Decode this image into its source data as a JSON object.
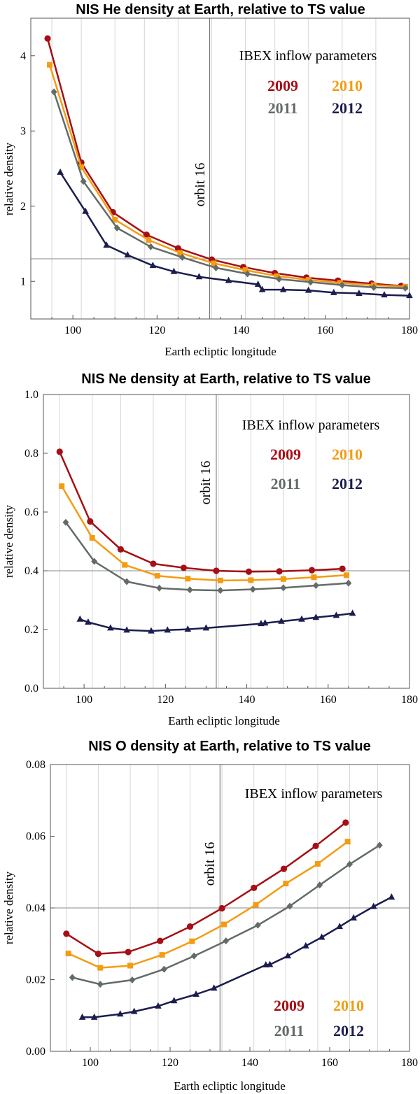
{
  "colors": {
    "2009": "#a50f15",
    "2010": "#f39c12",
    "2011": "#636b68",
    "2012": "#1b1d4e"
  },
  "chart_data": [
    {
      "type": "line",
      "title": "NIS He density at Earth, relative to TS value",
      "xlabel": "Earth ecliptic longitude",
      "ylabel": "relative density",
      "xlim": [
        90,
        180
      ],
      "ylim": [
        0.5,
        4.5
      ],
      "xticks": [
        100,
        120,
        140,
        160,
        180
      ],
      "yticks": [
        1,
        2,
        3,
        4
      ],
      "vgrid": [
        95,
        102,
        110,
        117,
        125,
        133,
        141,
        148,
        156,
        164,
        172
      ],
      "orbit_line": 132.5,
      "orbit_label": "orbit 16",
      "hline": 1.3,
      "legend_title": "IBEX inflow parameters",
      "series": [
        {
          "name": "2009",
          "marker": "circle",
          "x": [
            94,
            102,
            109.5,
            117.5,
            125,
            133,
            140.5,
            148,
            155.5,
            163,
            171,
            178
          ],
          "y": [
            4.23,
            2.58,
            1.92,
            1.62,
            1.44,
            1.29,
            1.19,
            1.11,
            1.05,
            1.01,
            0.97,
            0.94
          ]
        },
        {
          "name": "2010",
          "marker": "square",
          "x": [
            94.5,
            102,
            110,
            118,
            125.5,
            133.5,
            141,
            148.5,
            156,
            163.5,
            171.5,
            179
          ],
          "y": [
            3.88,
            2.52,
            1.82,
            1.55,
            1.38,
            1.24,
            1.15,
            1.07,
            1.02,
            0.98,
            0.95,
            0.93
          ]
        },
        {
          "name": "2011",
          "marker": "diamond",
          "x": [
            95.5,
            102.5,
            110.5,
            118.5,
            126,
            134,
            141.5,
            149,
            156.5,
            164,
            171.5,
            179
          ],
          "y": [
            3.52,
            2.33,
            1.71,
            1.46,
            1.32,
            1.18,
            1.1,
            1.03,
            0.99,
            0.95,
            0.92,
            0.91
          ]
        },
        {
          "name": "2012",
          "marker": "triangle",
          "x": [
            97,
            103,
            108,
            113,
            119,
            124,
            130,
            137,
            144,
            145,
            150,
            156,
            162,
            168,
            174,
            180
          ],
          "y": [
            2.45,
            1.93,
            1.48,
            1.35,
            1.21,
            1.13,
            1.06,
            1.01,
            0.96,
            0.89,
            0.89,
            0.88,
            0.85,
            0.84,
            0.82,
            0.81
          ]
        }
      ]
    },
    {
      "type": "line",
      "title": "NIS Ne density at Earth, relative to TS value",
      "xlabel": "Earth ecliptic longitude",
      "ylabel": "relative density",
      "xlim": [
        90,
        180
      ],
      "ylim": [
        0,
        1.0
      ],
      "xticks": [
        100,
        120,
        140,
        160,
        180
      ],
      "yticks": [
        0.0,
        0.2,
        0.4,
        0.6,
        0.8,
        1.0
      ],
      "vgrid": [
        94,
        102,
        109,
        117,
        125,
        133,
        141,
        149,
        157,
        165
      ],
      "orbit_line": 132.5,
      "orbit_label": "orbit 16",
      "hline": 0.4,
      "legend_title": "IBEX inflow parameters",
      "series": [
        {
          "name": "2009",
          "marker": "circle",
          "x": [
            94,
            101.5,
            109,
            117,
            124.5,
            132.5,
            140.5,
            148,
            156,
            163.5
          ],
          "y": [
            0.805,
            0.568,
            0.473,
            0.424,
            0.41,
            0.4,
            0.397,
            0.398,
            0.402,
            0.407
          ]
        },
        {
          "name": "2010",
          "marker": "square",
          "x": [
            94.5,
            102,
            110,
            118,
            125.5,
            133.5,
            141,
            149,
            156.5,
            164.5
          ],
          "y": [
            0.688,
            0.512,
            0.42,
            0.383,
            0.373,
            0.367,
            0.368,
            0.372,
            0.378,
            0.385
          ]
        },
        {
          "name": "2011",
          "marker": "diamond",
          "x": [
            95.5,
            102.5,
            110.5,
            118.5,
            126,
            133.5,
            141.5,
            149,
            157,
            165
          ],
          "y": [
            0.565,
            0.432,
            0.363,
            0.341,
            0.335,
            0.333,
            0.337,
            0.342,
            0.35,
            0.358
          ]
        },
        {
          "name": "2012",
          "marker": "triangle",
          "x": [
            99,
            101,
            106.5,
            110.5,
            116.5,
            120.5,
            125.5,
            130,
            143.5,
            144.5,
            148.5,
            153.5,
            157,
            162,
            166
          ],
          "y": [
            0.235,
            0.225,
            0.205,
            0.198,
            0.195,
            0.198,
            0.201,
            0.205,
            0.22,
            0.222,
            0.228,
            0.235,
            0.241,
            0.248,
            0.255
          ]
        }
      ]
    },
    {
      "type": "line",
      "title": "NIS O density at Earth, relative to TS value",
      "xlabel": "Earth ecliptic longitude",
      "ylabel": "relative density",
      "xlim": [
        90,
        180
      ],
      "ylim": [
        0,
        0.08
      ],
      "xticks": [
        100,
        120,
        140,
        160,
        180
      ],
      "yticks": [
        0.0,
        0.02,
        0.04,
        0.06,
        0.08
      ],
      "vgrid": [
        94,
        102,
        110,
        117,
        125,
        133,
        141,
        149,
        157,
        165,
        172
      ],
      "orbit_line": 132.5,
      "orbit_label": "orbit 16",
      "hline": 0.04,
      "legend_title": "IBEX inflow parameters",
      "series": [
        {
          "name": "2009",
          "marker": "circle",
          "x": [
            94,
            102,
            109.5,
            117.5,
            125,
            133,
            141,
            148.5,
            156.5,
            164
          ],
          "y": [
            0.0328,
            0.0272,
            0.0277,
            0.0308,
            0.0348,
            0.0399,
            0.0456,
            0.0509,
            0.0573,
            0.0638
          ]
        },
        {
          "name": "2010",
          "marker": "square",
          "x": [
            94.5,
            102.5,
            110,
            118,
            125.5,
            133.5,
            141.5,
            149,
            157,
            164.5
          ],
          "y": [
            0.0273,
            0.0233,
            0.0239,
            0.0269,
            0.0307,
            0.0354,
            0.0409,
            0.0468,
            0.0523,
            0.0585
          ]
        },
        {
          "name": "2011",
          "marker": "diamond",
          "x": [
            95.5,
            102.5,
            110.5,
            118.5,
            126,
            134,
            142,
            150,
            157.5,
            165,
            172.5
          ],
          "y": [
            0.0206,
            0.0187,
            0.0199,
            0.0229,
            0.0266,
            0.0308,
            0.0352,
            0.0405,
            0.0464,
            0.0522,
            0.0575
          ]
        },
        {
          "name": "2012",
          "marker": "triangle",
          "x": [
            98,
            101,
            107.5,
            111,
            117,
            121,
            126.5,
            131,
            144,
            145,
            149.5,
            154,
            158,
            162.5,
            166,
            171,
            175.5
          ],
          "y": [
            0.0095,
            0.0095,
            0.0104,
            0.0111,
            0.0126,
            0.0141,
            0.0159,
            0.0176,
            0.0241,
            0.0242,
            0.0266,
            0.0294,
            0.0318,
            0.0348,
            0.0372,
            0.0404,
            0.043
          ]
        }
      ]
    }
  ]
}
